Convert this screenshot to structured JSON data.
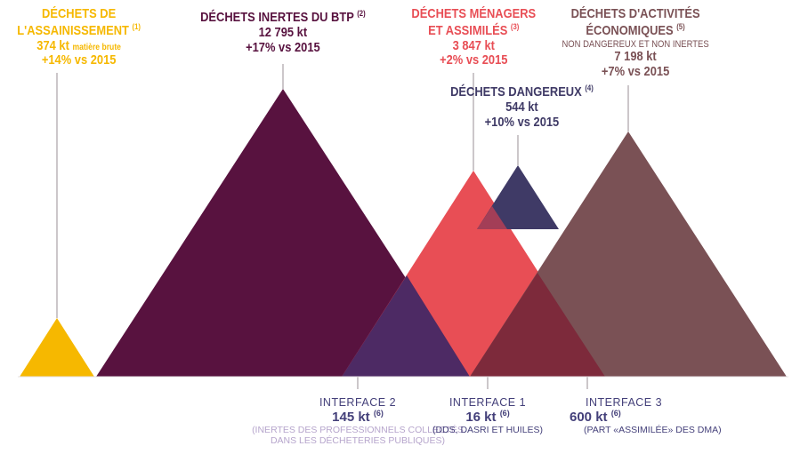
{
  "colors": {
    "assainissement": "#f6b800",
    "btp": "#58123f",
    "menagers": "#e84e55",
    "dangereux": "#3f3a66",
    "activites": "#7a5155",
    "interface2": "#4d2a64",
    "interface1": "#a33e57",
    "interface3": "#7d2a3b",
    "iface_text": "#44407a",
    "iface_note": "#b6a5cc",
    "leader": "#9a8f95"
  },
  "assainissement": {
    "title_1": "DÉCHETS DE",
    "title_2": "L'ASSAINISSEMENT",
    "ref": "(1)",
    "value": "374 kt",
    "value_note": "matière brute",
    "change": "+14% vs 2015"
  },
  "btp": {
    "title": "DÉCHETS INERTES DU BTP",
    "ref": "(2)",
    "value": "12 795 kt",
    "change": "+17% vs 2015"
  },
  "menagers": {
    "title_1": "DÉCHETS MÉNAGERS",
    "title_2": "ET ASSIMILÉS",
    "ref": "(3)",
    "value": "3 847 kt",
    "change": "+2% vs 2015"
  },
  "dangereux": {
    "title": "DÉCHETS DANGEREUX",
    "ref": "(4)",
    "value": "544 kt",
    "change": "+10% vs 2015"
  },
  "activites": {
    "title_1": "DÉCHETS D'ACTIVITÉS",
    "title_2": "ÉCONOMIQUES",
    "ref": "(5)",
    "subtitle": "NON DANGEREUX ET NON INERTES",
    "value": "7 198 kt",
    "change": "+7% vs 2015"
  },
  "interface2": {
    "title": "INTERFACE 2",
    "value": "145 kt",
    "ref": "(6)",
    "note_1": "(INERTES DES PROFESSIONNELS COLLECTÉS",
    "note_2": "DANS LES DÉCHETERIES PUBLIQUES)"
  },
  "interface1": {
    "title": "INTERFACE 1",
    "value": "16 kt",
    "ref": "(6)",
    "note": "(DDS, DASRI ET HUILES)"
  },
  "interface3": {
    "title": "INTERFACE 3",
    "value": "600 kt",
    "ref": "(6)",
    "note": "(PART «ASSIMILÉE» DES DMA)"
  }
}
